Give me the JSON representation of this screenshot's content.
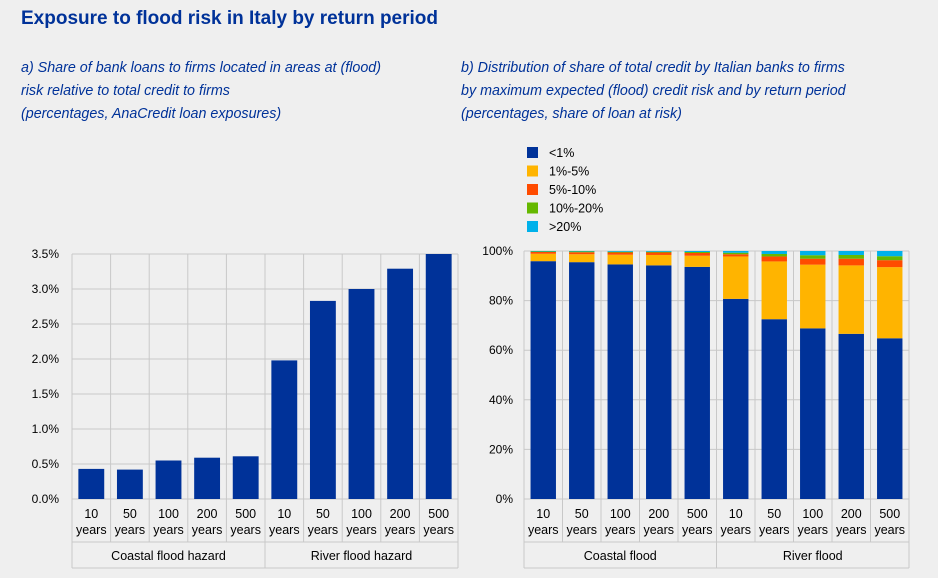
{
  "title": "Exposure to flood risk in Italy by return period",
  "panel_a": {
    "subtitle": [
      "a) Share of bank loans to firms located in areas at (flood)",
      "risk relative to total credit to firms",
      "(percentages, AnaCredit loan exposures)"
    ]
  },
  "panel_b": {
    "subtitle": [
      "b) Distribution of share of total credit by Italian banks to firms",
      "by maximum expected (flood) credit risk and by return period",
      "(percentages, share of loan at risk)"
    ]
  },
  "chart_data": [
    {
      "type": "bar",
      "title": "a) Share of bank loans to firms located in areas at (flood) risk relative to total credit to firms",
      "unit": "percentages, AnaCredit loan exposures",
      "categories": [
        "10 years",
        "50 years",
        "100 years",
        "200 years",
        "500 years",
        "10 years",
        "50 years",
        "100 years",
        "200 years",
        "500 years"
      ],
      "groups": [
        {
          "label": "Coastal flood hazard",
          "categories": [
            "10 years",
            "50 years",
            "100 years",
            "200 years",
            "500 years"
          ]
        },
        {
          "label": "River flood hazard",
          "categories": [
            "10 years",
            "50 years",
            "100 years",
            "200 years",
            "500 years"
          ]
        }
      ],
      "values": [
        0.43,
        0.42,
        0.55,
        0.59,
        0.61,
        1.98,
        2.83,
        3.0,
        3.29,
        3.5
      ],
      "ylim": [
        0,
        3.5
      ],
      "yticks": [
        "0.0%",
        "0.5%",
        "1.0%",
        "1.5%",
        "2.0%",
        "2.5%",
        "3.0%",
        "3.5%"
      ],
      "colors": {
        "bar": "#003299"
      },
      "grid": true
    },
    {
      "type": "bar",
      "stacked": true,
      "title": "b) Distribution of share of total credit by Italian banks to firms by maximum expected (flood) credit risk and by return period",
      "unit": "percentages, share of loan at risk",
      "categories": [
        "10 years",
        "50 years",
        "100 years",
        "200 years",
        "500 years",
        "10 years",
        "50 years",
        "100 years",
        "200 years",
        "500 years"
      ],
      "groups": [
        {
          "label": "Coastal flood",
          "categories": [
            "10 years",
            "50 years",
            "100 years",
            "200 years",
            "500 years"
          ]
        },
        {
          "label": "River flood",
          "categories": [
            "10 years",
            "50 years",
            "100 years",
            "200 years",
            "500 years"
          ]
        }
      ],
      "series": [
        {
          "name": "<1%",
          "color": "#003299",
          "values": [
            95.9,
            95.5,
            94.6,
            94.2,
            93.6,
            80.7,
            72.5,
            68.8,
            66.6,
            64.8
          ]
        },
        {
          "name": "1%-5%",
          "color": "#FFB400",
          "values": [
            3.0,
            3.2,
            3.9,
            4.2,
            4.5,
            17.1,
            23.3,
            25.7,
            27.6,
            28.7
          ]
        },
        {
          "name": "5%-10%",
          "color": "#FF4B00",
          "values": [
            0.7,
            0.8,
            0.9,
            1.0,
            1.1,
            0.9,
            2.0,
            2.4,
            2.7,
            2.8
          ]
        },
        {
          "name": "10%-20%",
          "color": "#65B800",
          "values": [
            0.2,
            0.3,
            0.3,
            0.3,
            0.4,
            0.6,
            1.0,
            1.4,
            1.5,
            1.6
          ]
        },
        {
          "name": ">20%",
          "color": "#00B1EA",
          "values": [
            0.2,
            0.2,
            0.3,
            0.3,
            0.4,
            0.7,
            1.2,
            1.7,
            1.6,
            2.1
          ]
        }
      ],
      "ylim": [
        0,
        100
      ],
      "yticks": [
        "0%",
        "20%",
        "40%",
        "60%",
        "80%",
        "100%"
      ],
      "legend_position": "top-left",
      "grid": true
    }
  ]
}
